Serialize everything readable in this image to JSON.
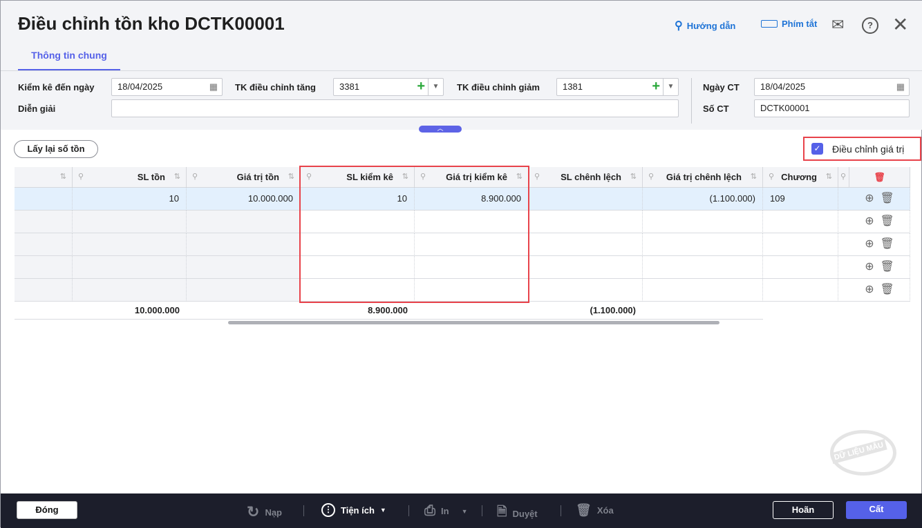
{
  "header": {
    "title": "Điều chỉnh tồn kho DCTK00001",
    "guide": "Hướng dẫn",
    "shortcut": "Phím tắt"
  },
  "tabs": [
    {
      "label": "Thông tin chung",
      "active": true
    }
  ],
  "form": {
    "inventory_date_label": "Kiểm kê đến ngày",
    "inventory_date": "18/04/2025",
    "increase_account_label": "TK điều chỉnh tăng",
    "increase_account": "3381",
    "decrease_account_label": "TK điều chỉnh giảm",
    "decrease_account": "1381",
    "description_label": "Diễn giải",
    "description": "",
    "voucher_date_label": "Ngày CT",
    "voucher_date": "18/04/2025",
    "voucher_no_label": "Số CT",
    "voucher_no": "DCTK00001"
  },
  "toolbar": {
    "reload_stock": "Lấy lại số tồn",
    "adjust_value_label": "Điều chỉnh giá trị",
    "adjust_value_checked": true
  },
  "grid": {
    "columns": [
      "",
      "SL tồn",
      "Giá trị tồn",
      "SL kiểm kê",
      "Giá trị kiểm kê",
      "SL chênh lệch",
      "Giá trị chênh lệch",
      "Chương"
    ],
    "rows": [
      [
        "",
        "10",
        "10.000.000",
        "10",
        "8.900.000",
        "",
        "(1.100.000)",
        "109"
      ],
      [
        "",
        "",
        "",
        "",
        "",
        "",
        "",
        ""
      ],
      [
        "",
        "",
        "",
        "",
        "",
        "",
        "",
        ""
      ],
      [
        "",
        "",
        "",
        "",
        "",
        "",
        "",
        ""
      ],
      [
        "",
        "",
        "",
        "",
        "",
        "",
        "",
        ""
      ]
    ],
    "totals": [
      "",
      "",
      "10.000.000",
      "",
      "8.900.000",
      "",
      "(1.100.000)",
      ""
    ]
  },
  "watermark": "DỮ LIỆU MẪU",
  "footer": {
    "close": "Đóng",
    "reload": "Nạp",
    "utilities": "Tiện ích",
    "print": "In",
    "approve": "Duyệt",
    "delete": "Xóa",
    "cancel": "Hoãn",
    "save": "Cất"
  },
  "colors": {
    "accent": "#5561e8",
    "highlight": "#e8424a",
    "footer_bg": "#1c1e2b"
  }
}
